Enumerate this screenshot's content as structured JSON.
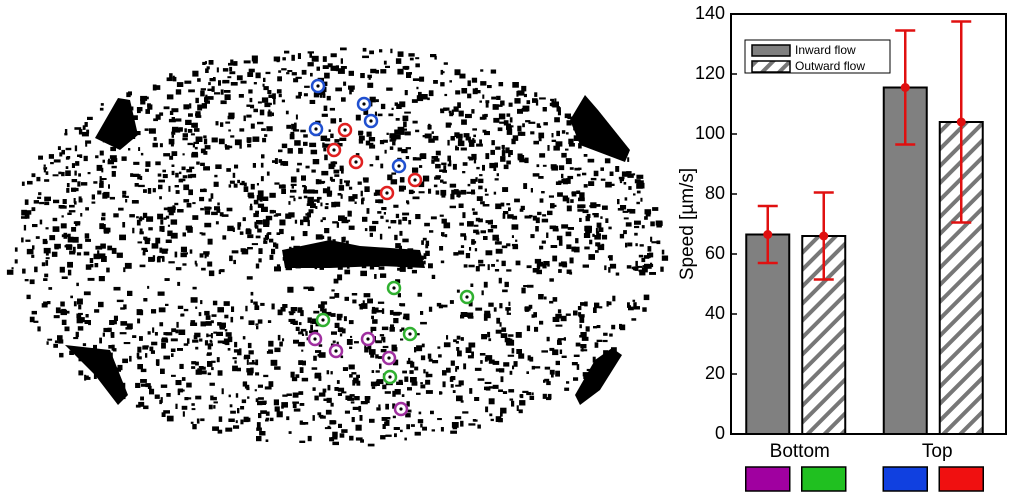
{
  "chart_data": {
    "type": "bar",
    "y_label": "Speed [µm/s]",
    "categories": [
      "Bottom",
      "Top"
    ],
    "series": [
      {
        "name": "Inward flow",
        "color": "#808080",
        "values": [
          66.5,
          115.5
        ],
        "errors": [
          9.5,
          19
        ]
      },
      {
        "name": "Outward flow",
        "color": "hatch",
        "values": [
          66,
          104
        ],
        "errors": [
          14.5,
          33.5
        ]
      }
    ],
    "error_color": "#e01010",
    "ylim": [
      0,
      140
    ],
    "yticks": [
      0,
      20,
      40,
      60,
      80,
      100,
      120,
      140
    ],
    "legend": "upper-left"
  }
}
